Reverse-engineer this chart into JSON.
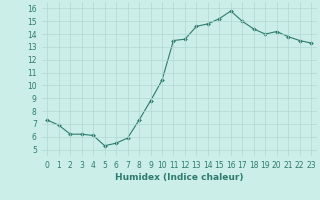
{
  "x": [
    0,
    1,
    2,
    3,
    4,
    5,
    6,
    7,
    8,
    9,
    10,
    11,
    12,
    13,
    14,
    15,
    16,
    17,
    18,
    19,
    20,
    21,
    22,
    23
  ],
  "y": [
    7.3,
    6.9,
    6.2,
    6.2,
    6.1,
    5.3,
    5.5,
    5.9,
    7.3,
    8.8,
    10.4,
    13.5,
    13.6,
    14.6,
    14.8,
    15.2,
    15.8,
    15.0,
    14.4,
    14.0,
    14.2,
    13.8,
    13.5,
    13.3
  ],
  "line_color": "#2d7b6e",
  "marker": "D",
  "marker_size": 2.0,
  "bg_color": "#cceee8",
  "grid_color": "#b0d8d0",
  "xlabel": "Humidex (Indice chaleur)",
  "xlim": [
    -0.5,
    23.5
  ],
  "ylim": [
    4.5,
    16.5
  ],
  "yticks": [
    5,
    6,
    7,
    8,
    9,
    10,
    11,
    12,
    13,
    14,
    15,
    16
  ],
  "xticks": [
    0,
    1,
    2,
    3,
    4,
    5,
    6,
    7,
    8,
    9,
    10,
    11,
    12,
    13,
    14,
    15,
    16,
    17,
    18,
    19,
    20,
    21,
    22,
    23
  ],
  "label_fontsize": 6.5,
  "tick_fontsize": 5.5
}
